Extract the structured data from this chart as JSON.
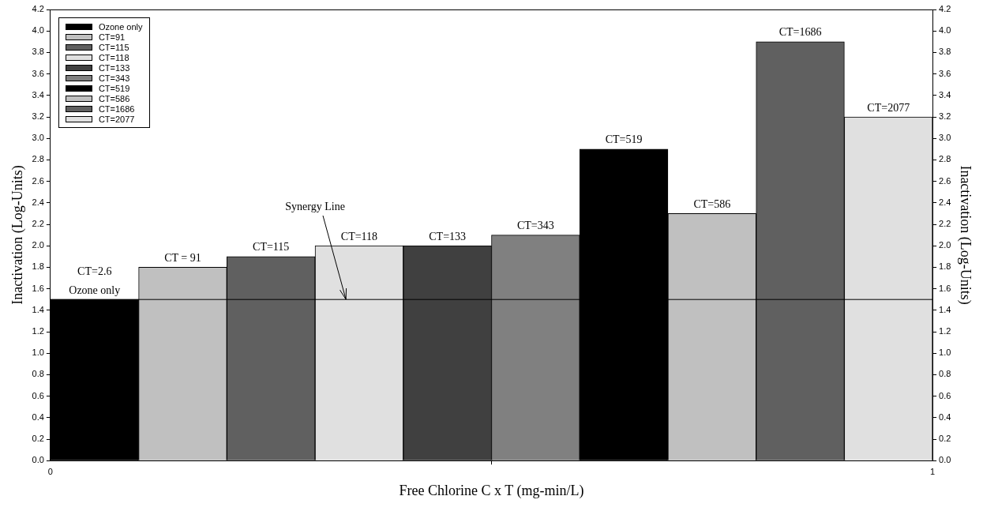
{
  "chart_data": {
    "type": "bar",
    "xlabel": "Free Chlorine C x T (mg-min/L)",
    "ylabel": "Inactivation (Log-Units)",
    "y2label": "Inactivation (Log-Units)",
    "xlim": [
      0,
      1
    ],
    "xticks": [
      0,
      1
    ],
    "ylim": [
      0,
      4.2
    ],
    "yticks": [
      {
        "value": 0,
        "label": "0.0"
      },
      0.2,
      0.4,
      0.6,
      0.8,
      {
        "value": 1,
        "label": "1.0"
      },
      1.2,
      1.4,
      1.6,
      1.8,
      {
        "value": 2,
        "label": "2.0"
      },
      2.2,
      2.4,
      2.6,
      2.8,
      {
        "value": 3,
        "label": "3.0"
      },
      3.2,
      3.4,
      3.6,
      3.8,
      {
        "value": 4,
        "label": "4.0"
      },
      4.2
    ],
    "y2lim": [
      0,
      4.2
    ],
    "y2ticks": [
      {
        "value": 0,
        "label": "0.0"
      },
      0.2,
      0.4,
      0.6,
      0.8,
      {
        "value": 1,
        "label": "1.0"
      },
      1.2,
      1.4,
      1.6,
      1.8,
      {
        "value": 2,
        "label": "2.0"
      },
      2.2,
      2.4,
      2.6,
      2.8,
      {
        "value": 3,
        "label": "3.0"
      },
      3.2,
      3.4,
      3.6,
      3.8,
      {
        "value": 4,
        "label": "4.0"
      },
      4.2
    ],
    "series": [
      {
        "name": "Ozone only",
        "color": "#000000",
        "x": [
          0.05
        ],
        "values": [
          1.5
        ]
      },
      {
        "name": "CT=91",
        "color": "#c0c0c0",
        "x": [
          0.15
        ],
        "values": [
          1.8
        ]
      },
      {
        "name": "CT=115",
        "color": "#606060",
        "x": [
          0.25
        ],
        "values": [
          1.9
        ]
      },
      {
        "name": "CT=118",
        "color": "#e0e0e0",
        "x": [
          0.35
        ],
        "values": [
          2.0
        ]
      },
      {
        "name": "CT=133",
        "color": "#404040",
        "x": [
          0.45
        ],
        "values": [
          2.0
        ]
      },
      {
        "name": "CT=343",
        "color": "#808080",
        "x": [
          0.55
        ],
        "values": [
          2.1
        ]
      },
      {
        "name": "CT=519",
        "color": "#000000",
        "x": [
          0.65
        ],
        "values": [
          2.9
        ]
      },
      {
        "name": "CT=586",
        "color": "#c0c0c0",
        "x": [
          0.75
        ],
        "values": [
          2.3
        ]
      },
      {
        "name": "CT=1686",
        "color": "#606060",
        "x": [
          0.85
        ],
        "values": [
          3.9
        ]
      },
      {
        "name": "CT=2077",
        "color": "#e0e0e0",
        "x": [
          0.95
        ],
        "values": [
          3.2
        ]
      }
    ],
    "ref_lines": [
      {
        "axis": "y",
        "value": 1.5,
        "label": "Synergy Line",
        "color": "#000000"
      }
    ],
    "annotations": [
      {
        "text": "Ozone only",
        "x": 0.05,
        "y": 1.5
      },
      {
        "text": "CT=2.6",
        "x": 0.05,
        "y": 1.5
      },
      {
        "text": "CT = 91",
        "x": 0.15,
        "y": 1.8
      },
      {
        "text": "CT=115",
        "x": 0.25,
        "y": 1.9
      },
      {
        "text": "CT=118",
        "x": 0.35,
        "y": 2.0
      },
      {
        "text": "CT=133",
        "x": 0.45,
        "y": 2.0
      },
      {
        "text": "CT=343",
        "x": 0.55,
        "y": 2.1
      },
      {
        "text": "CT=519",
        "x": 0.65,
        "y": 2.9
      },
      {
        "text": "CT=586",
        "x": 0.75,
        "y": 2.3
      },
      {
        "text": "CT=1686",
        "x": 0.85,
        "y": 3.9
      },
      {
        "text": "CT=2077",
        "x": 0.95,
        "y": 3.2
      }
    ],
    "legend": "top left",
    "grid": false
  }
}
